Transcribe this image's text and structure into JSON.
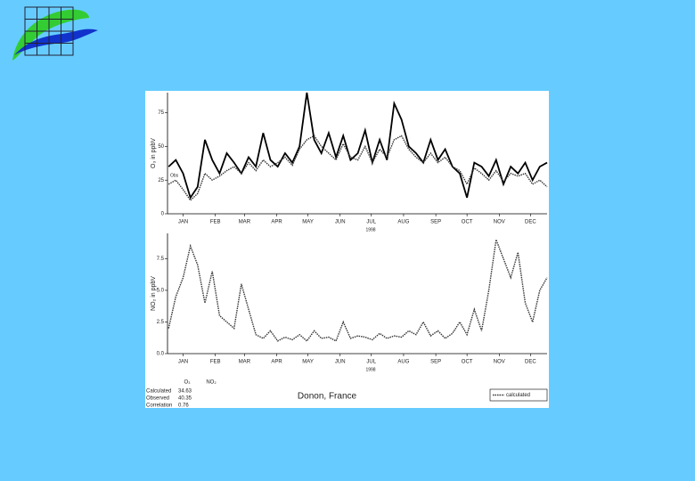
{
  "chart_data": [
    {
      "type": "line",
      "ylabel": "O₃ in ppbV",
      "xlabel": "1998",
      "annotation": "Obs",
      "x": [
        1,
        8,
        15,
        22,
        29,
        36,
        43,
        50,
        57,
        64,
        71,
        78,
        85,
        92,
        99,
        106,
        113,
        120,
        127,
        134,
        141,
        148,
        155,
        162,
        169,
        176,
        183,
        190,
        197,
        204,
        211,
        218,
        225,
        232,
        239,
        246,
        253,
        260,
        267,
        274,
        281,
        288,
        295,
        302,
        309,
        316,
        323,
        330,
        337,
        344,
        351,
        358,
        365
      ],
      "xlim": [
        0,
        365
      ],
      "xticks": [
        {
          "value": 15,
          "label": "JAN"
        },
        {
          "value": 46,
          "label": "FEB"
        },
        {
          "value": 74,
          "label": "MAR"
        },
        {
          "value": 105,
          "label": "APR"
        },
        {
          "value": 135,
          "label": "MAY"
        },
        {
          "value": 166,
          "label": "JUN"
        },
        {
          "value": 196,
          "label": "JUL"
        },
        {
          "value": 227,
          "label": "AUG"
        },
        {
          "value": 258,
          "label": "SEP"
        },
        {
          "value": 288,
          "label": "OCT"
        },
        {
          "value": 319,
          "label": "NOV"
        },
        {
          "value": 349,
          "label": "DEC"
        }
      ],
      "ylim": [
        0,
        90
      ],
      "yticks": [
        0,
        25,
        50,
        75
      ],
      "series": [
        {
          "color": "#000000",
          "style": "solid",
          "values": [
            35,
            40,
            30,
            12,
            20,
            55,
            40,
            30,
            45,
            38,
            30,
            42,
            35,
            60,
            40,
            35,
            45,
            38,
            50,
            90,
            55,
            45,
            60,
            42,
            58,
            40,
            45,
            62,
            38,
            55,
            40,
            82,
            70,
            50,
            45,
            38,
            55,
            40,
            48,
            35,
            30,
            12,
            38,
            35,
            28,
            40,
            22,
            35,
            30,
            38,
            25,
            35,
            38
          ]
        },
        {
          "color": "#333333",
          "style": "dotted",
          "values": [
            22,
            25,
            18,
            10,
            15,
            30,
            25,
            28,
            32,
            35,
            30,
            38,
            32,
            40,
            35,
            38,
            42,
            36,
            48,
            55,
            58,
            50,
            45,
            40,
            52,
            42,
            40,
            50,
            38,
            48,
            42,
            55,
            58,
            48,
            42,
            38,
            45,
            38,
            42,
            35,
            32,
            22,
            34,
            30,
            25,
            32,
            24,
            30,
            28,
            30,
            22,
            25,
            20
          ]
        }
      ]
    },
    {
      "type": "line",
      "ylabel": "NO₂ in ppbV",
      "xlabel": "1998",
      "x": [
        1,
        8,
        15,
        22,
        29,
        36,
        43,
        50,
        57,
        64,
        71,
        78,
        85,
        92,
        99,
        106,
        113,
        120,
        127,
        134,
        141,
        148,
        155,
        162,
        169,
        176,
        183,
        190,
        197,
        204,
        211,
        218,
        225,
        232,
        239,
        246,
        253,
        260,
        267,
        274,
        281,
        288,
        295,
        302,
        309,
        316,
        323,
        330,
        337,
        344,
        351,
        358,
        365
      ],
      "xlim": [
        0,
        365
      ],
      "xticks": [
        {
          "value": 15,
          "label": "JAN"
        },
        {
          "value": 46,
          "label": "FEB"
        },
        {
          "value": 74,
          "label": "MAR"
        },
        {
          "value": 105,
          "label": "APR"
        },
        {
          "value": 135,
          "label": "MAY"
        },
        {
          "value": 166,
          "label": "JUN"
        },
        {
          "value": 196,
          "label": "JUL"
        },
        {
          "value": 227,
          "label": "AUG"
        },
        {
          "value": 258,
          "label": "SEP"
        },
        {
          "value": 288,
          "label": "OCT"
        },
        {
          "value": 319,
          "label": "NOV"
        },
        {
          "value": 349,
          "label": "DEC"
        }
      ],
      "ylim": [
        0,
        9.5
      ],
      "yticks": [
        {
          "value": 0,
          "label": "0.0"
        },
        {
          "value": 2.5,
          "label": "2.5"
        },
        {
          "value": 5,
          "label": "5.0"
        },
        {
          "value": 7.5,
          "label": "7.5"
        }
      ],
      "series": [
        {
          "name": "calculated",
          "color": "#333333",
          "style": "dotted",
          "values": [
            2.0,
            4.5,
            6.0,
            8.5,
            7.0,
            4.0,
            6.5,
            3.0,
            2.5,
            2.0,
            5.5,
            3.5,
            1.5,
            1.2,
            1.8,
            1.0,
            1.3,
            1.1,
            1.5,
            1.0,
            1.8,
            1.2,
            1.3,
            1.0,
            2.5,
            1.2,
            1.4,
            1.3,
            1.1,
            1.6,
            1.2,
            1.4,
            1.3,
            1.8,
            1.5,
            2.5,
            1.4,
            1.8,
            1.2,
            1.6,
            2.5,
            1.5,
            3.5,
            1.8,
            5.0,
            9.0,
            7.5,
            6.0,
            8.0,
            4.0,
            2.5,
            5.0,
            6.0
          ]
        }
      ],
      "legend": "lower right"
    }
  ],
  "footer": {
    "title": "Donon, France",
    "table": {
      "headers": [
        "O₃",
        "NO₂"
      ],
      "rows": [
        [
          "Calculated",
          "34.63"
        ],
        [
          "Observed",
          "40.35"
        ],
        [
          "Correlation",
          "0.76"
        ]
      ]
    }
  }
}
